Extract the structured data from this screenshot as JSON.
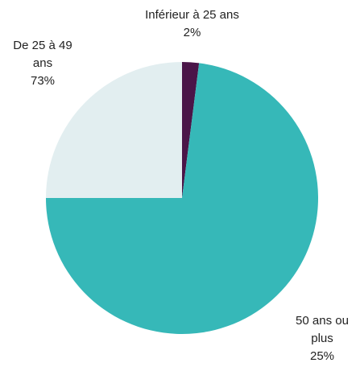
{
  "chart_data": {
    "type": "pie",
    "categories": [
      "Inférieur à 25 ans",
      "De 25 à 49 ans",
      "50 ans ou plus"
    ],
    "values": [
      2,
      73,
      25
    ],
    "value_labels": [
      "2%",
      "73%",
      "25%"
    ],
    "colors": [
      "#4a1548",
      "#36b8b8",
      "#e2eef0"
    ]
  }
}
